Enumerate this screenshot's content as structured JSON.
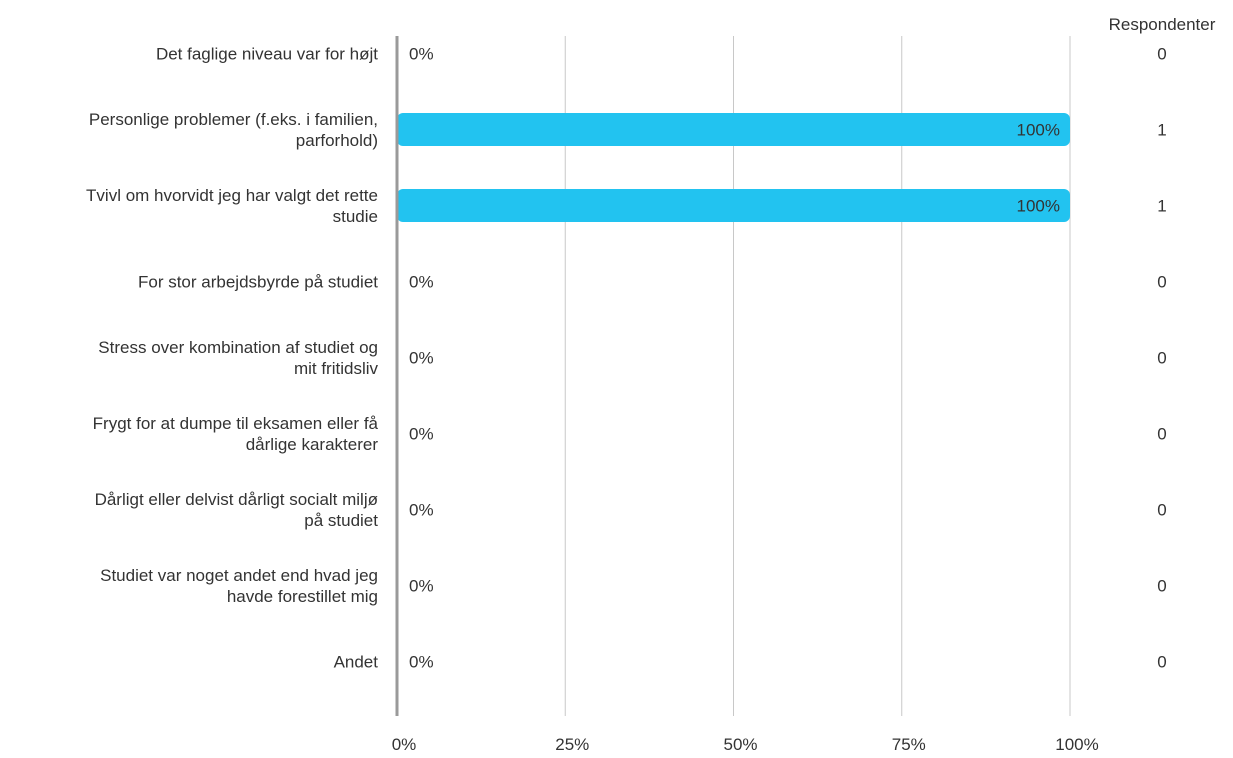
{
  "chart_data": {
    "type": "bar",
    "orientation": "horizontal",
    "title": "",
    "xlabel": "",
    "ylabel": "",
    "xlim": [
      0,
      100
    ],
    "x_ticks": [
      "0%",
      "25%",
      "50%",
      "75%",
      "100%"
    ],
    "grid": true,
    "legend": "none",
    "right_column_header": "Respondenter",
    "categories": [
      "Det faglige niveau var for højt",
      "Personlige problemer (f.eks. i familien, parforhold)",
      "Tvivl om hvorvidt jeg har valgt det rette studie",
      "For stor arbejdsbyrde på studiet",
      "Stress over kombination af studiet og mit fritidsliv",
      "Frygt for at dumpe til eksamen eller få dårlige karakterer",
      "Dårligt eller delvist dårligt socialt miljø på studiet",
      "Studiet var noget andet end hvad jeg havde forestillet mig",
      "Andet"
    ],
    "category_lines": [
      [
        "Det faglige niveau var for højt"
      ],
      [
        "Personlige problemer (f.eks. i familien,",
        "parforhold)"
      ],
      [
        "Tvivl om hvorvidt jeg har valgt det rette",
        "studie"
      ],
      [
        "For stor arbejdsbyrde på studiet"
      ],
      [
        "Stress over kombination af studiet og",
        "mit fritidsliv"
      ],
      [
        "Frygt for at dumpe til eksamen eller få",
        "dårlige karakterer"
      ],
      [
        "Dårligt eller delvist dårligt socialt miljø",
        "på studiet"
      ],
      [
        "Studiet var noget andet end hvad jeg",
        "havde forestillet mig"
      ],
      [
        "Andet"
      ]
    ],
    "values": [
      0,
      100,
      100,
      0,
      0,
      0,
      0,
      0,
      0
    ],
    "value_labels": [
      "0%",
      "100%",
      "100%",
      "0%",
      "0%",
      "0%",
      "0%",
      "0%",
      "0%"
    ],
    "respondents": [
      "0",
      "1",
      "1",
      "0",
      "0",
      "0",
      "0",
      "0",
      "0"
    ],
    "bar_color": "#22c3f0",
    "grid_color": "#c8c8c8",
    "axis_color": "#9a9a9a",
    "text_color": "#333333"
  }
}
